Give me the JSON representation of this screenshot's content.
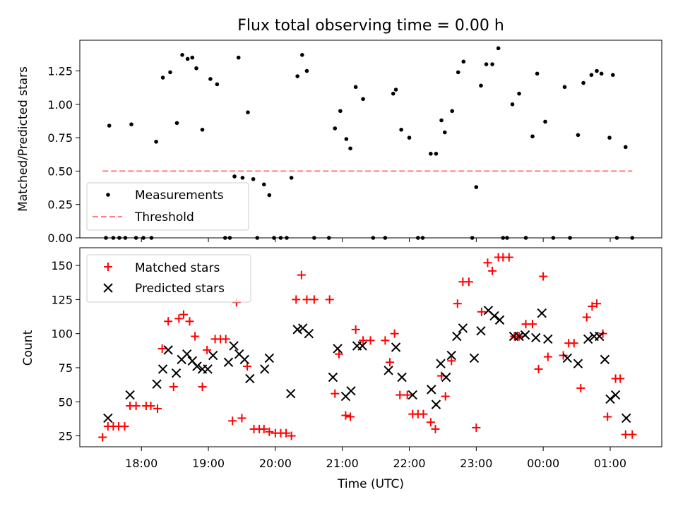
{
  "colors": {
    "measurement": "#000000",
    "threshold": "#ff7f7f",
    "matched": "#ff0000",
    "predicted": "#000000"
  },
  "chart_data": [
    {
      "type": "scatter",
      "title": "Flux total observing time = 0.00 h",
      "xlabel": "",
      "ylabel": "Matched/Predicted stars",
      "xlim": [
        17.08,
        25.77
      ],
      "ylim": [
        0,
        1.48
      ],
      "yticks": [
        0,
        0.25,
        0.5,
        0.75,
        1.0,
        1.25
      ],
      "ytick_labels": [
        "0.00",
        "0.25",
        "0.50",
        "0.75",
        "1.00",
        "1.25"
      ],
      "xticks": [
        18,
        19,
        20,
        21,
        22,
        23,
        24,
        25
      ],
      "legend": {
        "position": "lower-left",
        "entries": [
          "Measurements",
          "Threshold"
        ]
      },
      "threshold": {
        "name": "Threshold",
        "value": 0.5,
        "x": [
          17.42,
          25.33
        ]
      },
      "series": [
        {
          "name": "Measurements",
          "x": [
            17.47,
            17.52,
            17.58,
            17.67,
            17.76,
            17.85,
            17.92,
            18.03,
            18.15,
            18.22,
            18.32,
            18.43,
            18.53,
            18.61,
            18.69,
            18.76,
            18.82,
            18.91,
            19.03,
            19.13,
            19.25,
            19.32,
            19.39,
            19.45,
            19.51,
            19.59,
            19.67,
            19.73,
            19.83,
            19.91,
            19.98,
            20.08,
            20.17,
            20.24,
            20.33,
            20.4,
            20.47,
            20.58,
            20.8,
            20.89,
            20.97,
            21.06,
            21.12,
            21.2,
            21.31,
            21.46,
            21.64,
            21.76,
            21.8,
            21.88,
            22.0,
            22.13,
            22.2,
            22.32,
            22.4,
            22.48,
            22.53,
            22.64,
            22.73,
            22.81,
            22.94,
            23.0,
            23.07,
            23.15,
            23.24,
            23.33,
            23.4,
            23.46,
            23.54,
            23.64,
            23.74,
            23.84,
            23.91,
            24.03,
            24.15,
            24.32,
            24.4,
            24.52,
            24.6,
            24.72,
            24.8,
            24.87,
            24.99,
            25.04,
            25.1,
            25.23,
            25.33
          ],
          "y": [
            0.0,
            0.84,
            0.0,
            0.0,
            0.0,
            0.85,
            0.0,
            0.0,
            0.0,
            0.72,
            1.2,
            1.24,
            0.86,
            1.37,
            1.34,
            1.35,
            1.27,
            0.81,
            1.19,
            1.15,
            0.0,
            0.0,
            0.46,
            1.35,
            0.45,
            0.94,
            0.44,
            0.0,
            0.4,
            0.32,
            0.0,
            0.0,
            0.0,
            0.45,
            1.21,
            1.37,
            1.25,
            0.0,
            0.0,
            0.82,
            0.95,
            0.74,
            0.67,
            1.13,
            1.04,
            0.0,
            0.0,
            1.08,
            1.11,
            0.81,
            0.75,
            0.0,
            0.0,
            0.63,
            0.63,
            0.88,
            0.79,
            0.95,
            1.24,
            1.32,
            0.0,
            0.38,
            1.14,
            1.3,
            1.3,
            1.42,
            0.0,
            0.0,
            1.0,
            1.08,
            0.0,
            0.76,
            1.23,
            0.87,
            0.0,
            1.13,
            0.0,
            0.77,
            1.16,
            1.22,
            1.25,
            1.23,
            0.75,
            1.22,
            0.0,
            0.68,
            0.0
          ]
        }
      ]
    },
    {
      "type": "scatter",
      "title": "",
      "xlabel": "Time (UTC)",
      "ylabel": "Count",
      "xlim": [
        17.08,
        25.77
      ],
      "ylim": [
        17,
        163
      ],
      "yticks": [
        25,
        50,
        75,
        100,
        125,
        150
      ],
      "ytick_labels": [
        "25",
        "50",
        "75",
        "100",
        "125",
        "150"
      ],
      "xticks": [
        18,
        19,
        20,
        21,
        22,
        23,
        24,
        25
      ],
      "xtick_labels": [
        "18:00",
        "19:00",
        "20:00",
        "21:00",
        "22:00",
        "23:00",
        "00:00",
        "01:00"
      ],
      "legend": {
        "position": "upper-left",
        "entries": [
          "Matched stars",
          "Predicted stars"
        ]
      },
      "series": [
        {
          "name": "Matched stars",
          "marker": "plus",
          "x": [
            17.42,
            17.5,
            17.58,
            17.66,
            17.75,
            17.83,
            17.92,
            18.07,
            18.14,
            18.24,
            18.31,
            18.4,
            18.48,
            18.56,
            18.63,
            18.72,
            18.8,
            18.91,
            18.98,
            19.1,
            19.18,
            19.26,
            19.36,
            19.42,
            19.5,
            19.58,
            19.68,
            19.76,
            19.83,
            19.91,
            20.0,
            20.08,
            20.16,
            20.24,
            20.31,
            20.39,
            20.47,
            20.58,
            20.81,
            20.89,
            20.95,
            21.05,
            21.12,
            21.2,
            21.31,
            21.42,
            21.64,
            21.71,
            21.78,
            21.86,
            21.97,
            22.05,
            22.13,
            22.21,
            22.32,
            22.39,
            22.48,
            22.54,
            22.63,
            22.72,
            22.8,
            22.89,
            23.0,
            23.08,
            23.17,
            23.24,
            23.33,
            23.4,
            23.49,
            23.57,
            23.64,
            23.74,
            23.84,
            23.93,
            24.0,
            24.07,
            24.3,
            24.38,
            24.46,
            24.56,
            24.65,
            24.73,
            24.8,
            24.89,
            24.96,
            25.08,
            25.15,
            25.23,
            25.33
          ],
          "y": [
            24,
            32,
            32,
            32,
            32,
            47,
            47,
            47,
            47,
            45,
            89,
            109,
            61,
            111,
            114,
            109,
            98,
            61,
            88,
            96,
            96,
            96,
            36,
            123,
            38,
            76,
            30,
            30,
            30,
            28,
            27,
            27,
            27,
            25,
            125,
            143,
            125,
            125,
            125,
            56,
            85,
            40,
            39,
            103,
            95,
            95,
            95,
            79,
            100,
            55,
            55,
            41,
            41,
            41,
            35,
            30,
            69,
            54,
            80,
            122,
            138,
            138,
            31,
            116,
            152,
            146,
            156,
            156,
            156,
            98,
            98,
            107,
            107,
            74,
            142,
            83,
            84,
            93,
            93,
            60,
            112,
            120,
            122,
            100,
            39,
            67,
            67,
            26,
            26
          ]
        },
        {
          "name": "Predicted stars",
          "marker": "x",
          "x": [
            17.5,
            17.83,
            18.23,
            18.32,
            18.4,
            18.52,
            18.6,
            18.68,
            18.76,
            18.83,
            18.91,
            18.99,
            19.07,
            19.3,
            19.38,
            19.46,
            19.54,
            19.62,
            19.84,
            19.91,
            20.23,
            20.33,
            20.41,
            20.5,
            20.86,
            20.93,
            21.05,
            21.13,
            21.22,
            21.3,
            21.69,
            21.8,
            21.89,
            22.05,
            22.33,
            22.4,
            22.47,
            22.55,
            22.63,
            22.71,
            22.8,
            22.97,
            23.07,
            23.18,
            23.27,
            23.35,
            23.56,
            23.64,
            23.73,
            23.89,
            23.98,
            24.07,
            24.36,
            24.52,
            24.67,
            24.76,
            24.84,
            24.92,
            25.0,
            25.08,
            25.24
          ],
          "y": [
            38,
            55,
            63,
            74,
            88,
            71,
            81,
            85,
            80,
            76,
            74,
            74,
            84,
            79,
            91,
            85,
            81,
            67,
            74,
            82,
            56,
            103,
            104,
            100,
            68,
            89,
            54,
            58,
            91,
            91,
            73,
            90,
            68,
            55,
            59,
            48,
            78,
            68,
            84,
            98,
            104,
            82,
            102,
            117,
            113,
            110,
            98,
            98,
            99,
            97,
            115,
            96,
            82,
            78,
            96,
            98,
            98,
            81,
            52,
            55,
            38
          ]
        }
      ]
    }
  ]
}
